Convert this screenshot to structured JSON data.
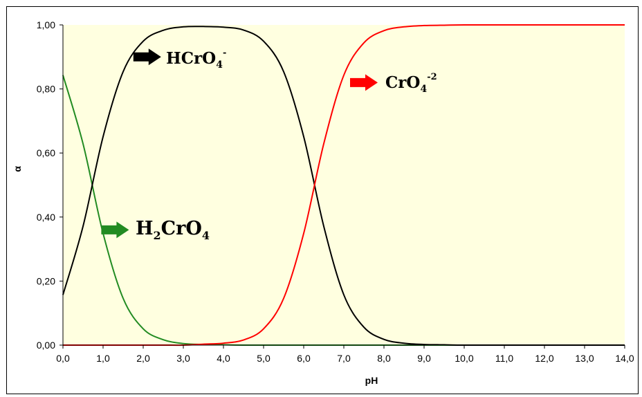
{
  "chart_data": {
    "type": "line",
    "xlabel": "pH",
    "ylabel": "α",
    "xlim": [
      0,
      14
    ],
    "ylim": [
      0,
      1
    ],
    "grid": false,
    "plot_background": "#ffffe0",
    "x_ticks": [
      "0,0",
      "1,0",
      "2,0",
      "3,0",
      "4,0",
      "5,0",
      "6,0",
      "7,0",
      "8,0",
      "9,0",
      "10,0",
      "11,0",
      "12,0",
      "13,0",
      "14,0"
    ],
    "y_ticks": [
      "0,00",
      "0,20",
      "0,40",
      "0,60",
      "0,80",
      "1,00"
    ],
    "x": [
      0,
      0.5,
      1,
      1.5,
      2,
      2.5,
      3,
      3.5,
      4,
      4.5,
      5,
      5.5,
      6,
      6.5,
      7,
      7.5,
      8,
      8.5,
      9,
      9.5,
      10,
      11,
      12,
      13,
      14
    ],
    "series": [
      {
        "name": "H2CrO4",
        "label": {
          "base1": "H",
          "sub1": "2",
          "base2": "CrO",
          "sub2": "4"
        },
        "color": "#228b22",
        "values": [
          0.843,
          0.629,
          0.349,
          0.146,
          0.051,
          0.017,
          0.005,
          0.002,
          0.001,
          0,
          0,
          0,
          0,
          0,
          0,
          0,
          0,
          0,
          0,
          0,
          0,
          0,
          0,
          0,
          0
        ]
      },
      {
        "name": "HCrO4-",
        "label": {
          "base": "HCrO",
          "sub": "4",
          "sup": "-"
        },
        "color": "#000000",
        "values": [
          0.157,
          0.371,
          0.651,
          0.854,
          0.949,
          0.983,
          0.994,
          0.995,
          0.993,
          0.984,
          0.949,
          0.854,
          0.651,
          0.371,
          0.157,
          0.056,
          0.018,
          0.006,
          0.002,
          0.001,
          0,
          0,
          0,
          0,
          0
        ]
      },
      {
        "name": "CrO4-2",
        "label": {
          "base": "CrO",
          "sub": "4",
          "sup": "-2"
        },
        "color": "#ff0000",
        "values": [
          0,
          0,
          0,
          0,
          0,
          0,
          0,
          0.003,
          0.006,
          0.016,
          0.051,
          0.146,
          0.349,
          0.629,
          0.843,
          0.944,
          0.982,
          0.994,
          0.998,
          0.999,
          1,
          1,
          1,
          1,
          1
        ]
      }
    ],
    "annotations": [
      {
        "series": "HCrO4-",
        "arrow_color": "#000000",
        "at": [
          2.1,
          0.9
        ]
      },
      {
        "series": "CrO4-2",
        "arrow_color": "#ff0000",
        "at": [
          7.5,
          0.82
        ]
      },
      {
        "series": "H2CrO4",
        "arrow_color": "#228b22",
        "at": [
          1.3,
          0.36
        ]
      }
    ]
  }
}
